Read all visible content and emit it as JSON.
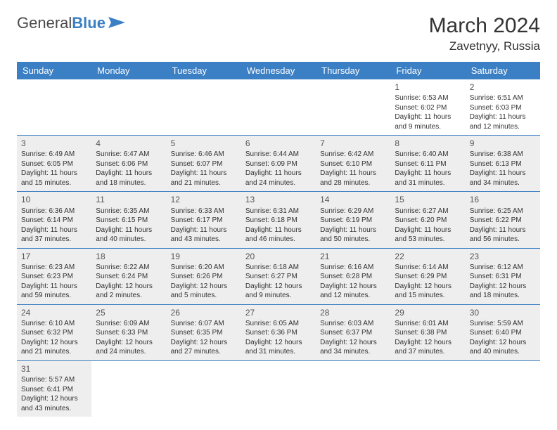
{
  "logo": {
    "text1": "General",
    "text2": "Blue"
  },
  "title": "March 2024",
  "location": "Zavetnyy, Russia",
  "colors": {
    "header_bg": "#3b7fc4",
    "header_fg": "#ffffff",
    "rule": "#3b7fc4",
    "shade": "#eeeeee"
  },
  "day_headers": [
    "Sunday",
    "Monday",
    "Tuesday",
    "Wednesday",
    "Thursday",
    "Friday",
    "Saturday"
  ],
  "weeks": [
    [
      {
        "n": "",
        "sr": "",
        "ss": "",
        "dl": "",
        "sh": false
      },
      {
        "n": "",
        "sr": "",
        "ss": "",
        "dl": "",
        "sh": false
      },
      {
        "n": "",
        "sr": "",
        "ss": "",
        "dl": "",
        "sh": false
      },
      {
        "n": "",
        "sr": "",
        "ss": "",
        "dl": "",
        "sh": false
      },
      {
        "n": "",
        "sr": "",
        "ss": "",
        "dl": "",
        "sh": false
      },
      {
        "n": "1",
        "sr": "Sunrise: 6:53 AM",
        "ss": "Sunset: 6:02 PM",
        "dl": "Daylight: 11 hours and 9 minutes.",
        "sh": false
      },
      {
        "n": "2",
        "sr": "Sunrise: 6:51 AM",
        "ss": "Sunset: 6:03 PM",
        "dl": "Daylight: 11 hours and 12 minutes.",
        "sh": false
      }
    ],
    [
      {
        "n": "3",
        "sr": "Sunrise: 6:49 AM",
        "ss": "Sunset: 6:05 PM",
        "dl": "Daylight: 11 hours and 15 minutes.",
        "sh": true
      },
      {
        "n": "4",
        "sr": "Sunrise: 6:47 AM",
        "ss": "Sunset: 6:06 PM",
        "dl": "Daylight: 11 hours and 18 minutes.",
        "sh": true
      },
      {
        "n": "5",
        "sr": "Sunrise: 6:46 AM",
        "ss": "Sunset: 6:07 PM",
        "dl": "Daylight: 11 hours and 21 minutes.",
        "sh": true
      },
      {
        "n": "6",
        "sr": "Sunrise: 6:44 AM",
        "ss": "Sunset: 6:09 PM",
        "dl": "Daylight: 11 hours and 24 minutes.",
        "sh": true
      },
      {
        "n": "7",
        "sr": "Sunrise: 6:42 AM",
        "ss": "Sunset: 6:10 PM",
        "dl": "Daylight: 11 hours and 28 minutes.",
        "sh": true
      },
      {
        "n": "8",
        "sr": "Sunrise: 6:40 AM",
        "ss": "Sunset: 6:11 PM",
        "dl": "Daylight: 11 hours and 31 minutes.",
        "sh": true
      },
      {
        "n": "9",
        "sr": "Sunrise: 6:38 AM",
        "ss": "Sunset: 6:13 PM",
        "dl": "Daylight: 11 hours and 34 minutes.",
        "sh": true
      }
    ],
    [
      {
        "n": "10",
        "sr": "Sunrise: 6:36 AM",
        "ss": "Sunset: 6:14 PM",
        "dl": "Daylight: 11 hours and 37 minutes.",
        "sh": true
      },
      {
        "n": "11",
        "sr": "Sunrise: 6:35 AM",
        "ss": "Sunset: 6:15 PM",
        "dl": "Daylight: 11 hours and 40 minutes.",
        "sh": true
      },
      {
        "n": "12",
        "sr": "Sunrise: 6:33 AM",
        "ss": "Sunset: 6:17 PM",
        "dl": "Daylight: 11 hours and 43 minutes.",
        "sh": true
      },
      {
        "n": "13",
        "sr": "Sunrise: 6:31 AM",
        "ss": "Sunset: 6:18 PM",
        "dl": "Daylight: 11 hours and 46 minutes.",
        "sh": true
      },
      {
        "n": "14",
        "sr": "Sunrise: 6:29 AM",
        "ss": "Sunset: 6:19 PM",
        "dl": "Daylight: 11 hours and 50 minutes.",
        "sh": true
      },
      {
        "n": "15",
        "sr": "Sunrise: 6:27 AM",
        "ss": "Sunset: 6:20 PM",
        "dl": "Daylight: 11 hours and 53 minutes.",
        "sh": true
      },
      {
        "n": "16",
        "sr": "Sunrise: 6:25 AM",
        "ss": "Sunset: 6:22 PM",
        "dl": "Daylight: 11 hours and 56 minutes.",
        "sh": true
      }
    ],
    [
      {
        "n": "17",
        "sr": "Sunrise: 6:23 AM",
        "ss": "Sunset: 6:23 PM",
        "dl": "Daylight: 11 hours and 59 minutes.",
        "sh": true
      },
      {
        "n": "18",
        "sr": "Sunrise: 6:22 AM",
        "ss": "Sunset: 6:24 PM",
        "dl": "Daylight: 12 hours and 2 minutes.",
        "sh": true
      },
      {
        "n": "19",
        "sr": "Sunrise: 6:20 AM",
        "ss": "Sunset: 6:26 PM",
        "dl": "Daylight: 12 hours and 5 minutes.",
        "sh": true
      },
      {
        "n": "20",
        "sr": "Sunrise: 6:18 AM",
        "ss": "Sunset: 6:27 PM",
        "dl": "Daylight: 12 hours and 9 minutes.",
        "sh": true
      },
      {
        "n": "21",
        "sr": "Sunrise: 6:16 AM",
        "ss": "Sunset: 6:28 PM",
        "dl": "Daylight: 12 hours and 12 minutes.",
        "sh": true
      },
      {
        "n": "22",
        "sr": "Sunrise: 6:14 AM",
        "ss": "Sunset: 6:29 PM",
        "dl": "Daylight: 12 hours and 15 minutes.",
        "sh": true
      },
      {
        "n": "23",
        "sr": "Sunrise: 6:12 AM",
        "ss": "Sunset: 6:31 PM",
        "dl": "Daylight: 12 hours and 18 minutes.",
        "sh": true
      }
    ],
    [
      {
        "n": "24",
        "sr": "Sunrise: 6:10 AM",
        "ss": "Sunset: 6:32 PM",
        "dl": "Daylight: 12 hours and 21 minutes.",
        "sh": true
      },
      {
        "n": "25",
        "sr": "Sunrise: 6:09 AM",
        "ss": "Sunset: 6:33 PM",
        "dl": "Daylight: 12 hours and 24 minutes.",
        "sh": true
      },
      {
        "n": "26",
        "sr": "Sunrise: 6:07 AM",
        "ss": "Sunset: 6:35 PM",
        "dl": "Daylight: 12 hours and 27 minutes.",
        "sh": true
      },
      {
        "n": "27",
        "sr": "Sunrise: 6:05 AM",
        "ss": "Sunset: 6:36 PM",
        "dl": "Daylight: 12 hours and 31 minutes.",
        "sh": true
      },
      {
        "n": "28",
        "sr": "Sunrise: 6:03 AM",
        "ss": "Sunset: 6:37 PM",
        "dl": "Daylight: 12 hours and 34 minutes.",
        "sh": true
      },
      {
        "n": "29",
        "sr": "Sunrise: 6:01 AM",
        "ss": "Sunset: 6:38 PM",
        "dl": "Daylight: 12 hours and 37 minutes.",
        "sh": true
      },
      {
        "n": "30",
        "sr": "Sunrise: 5:59 AM",
        "ss": "Sunset: 6:40 PM",
        "dl": "Daylight: 12 hours and 40 minutes.",
        "sh": true
      }
    ],
    [
      {
        "n": "31",
        "sr": "Sunrise: 5:57 AM",
        "ss": "Sunset: 6:41 PM",
        "dl": "Daylight: 12 hours and 43 minutes.",
        "sh": true
      },
      {
        "n": "",
        "sr": "",
        "ss": "",
        "dl": "",
        "sh": false
      },
      {
        "n": "",
        "sr": "",
        "ss": "",
        "dl": "",
        "sh": false
      },
      {
        "n": "",
        "sr": "",
        "ss": "",
        "dl": "",
        "sh": false
      },
      {
        "n": "",
        "sr": "",
        "ss": "",
        "dl": "",
        "sh": false
      },
      {
        "n": "",
        "sr": "",
        "ss": "",
        "dl": "",
        "sh": false
      },
      {
        "n": "",
        "sr": "",
        "ss": "",
        "dl": "",
        "sh": false
      }
    ]
  ]
}
